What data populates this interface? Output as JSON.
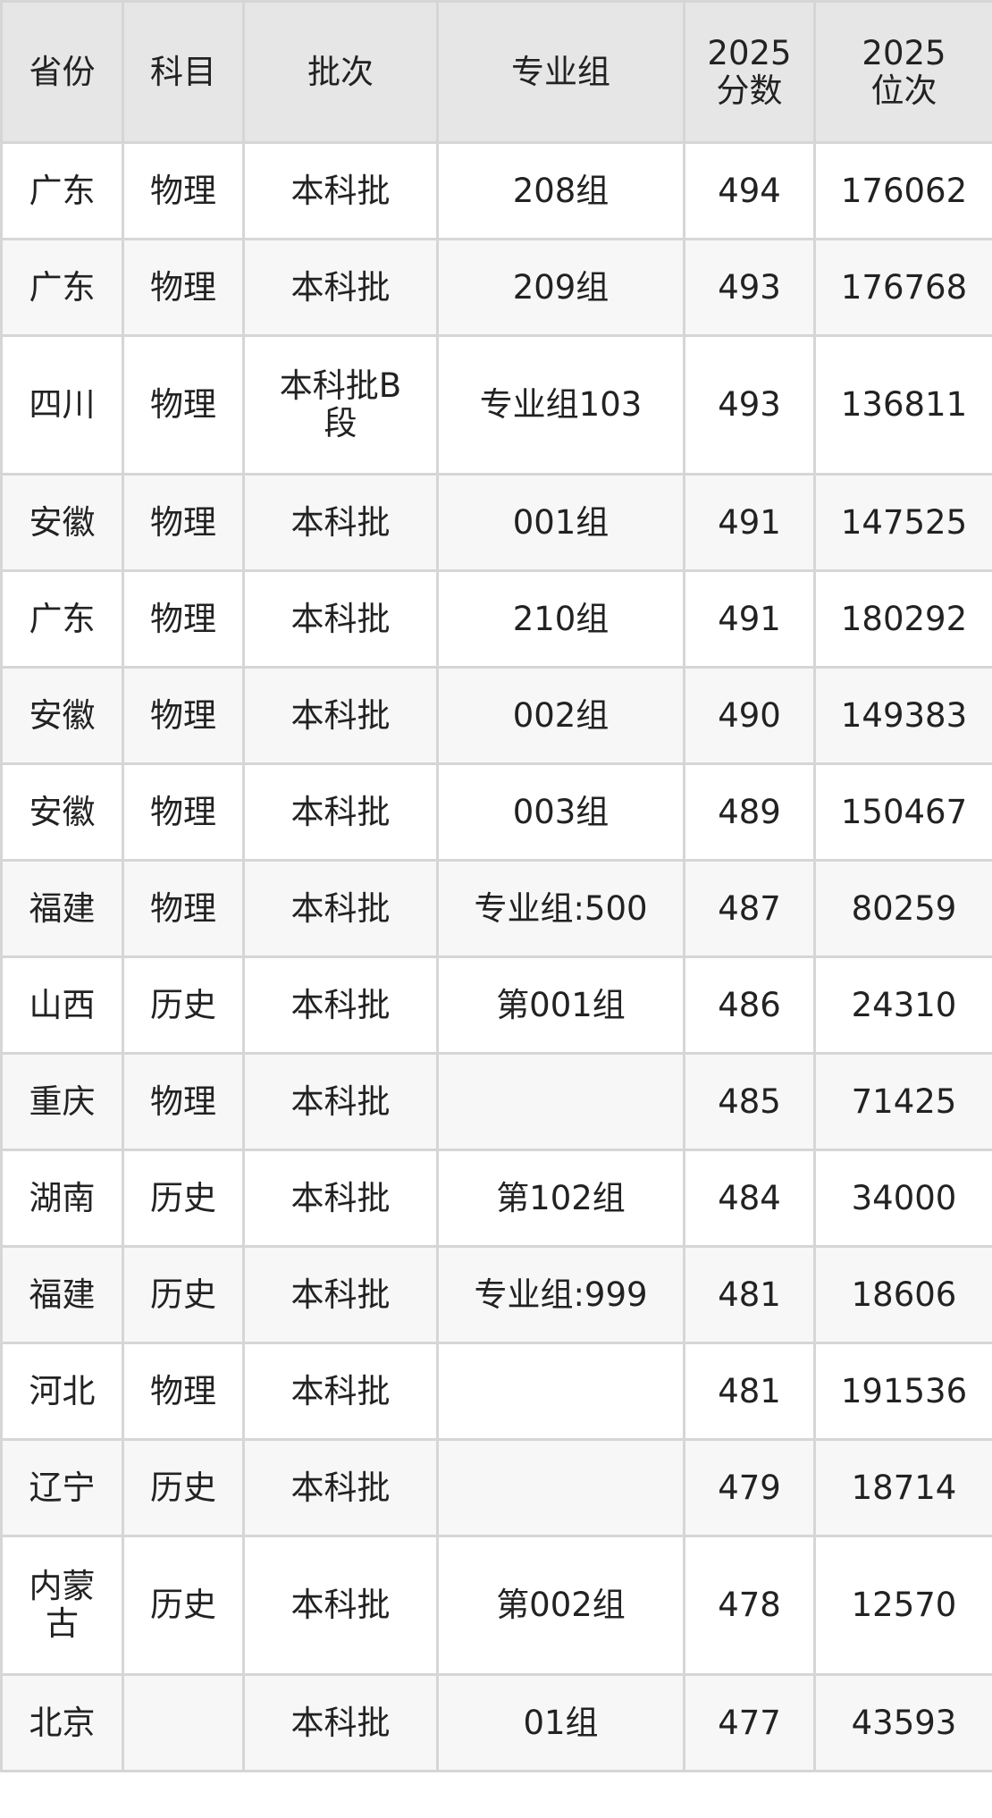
{
  "header": [
    "省份",
    "科目",
    "批次",
    "专业组",
    "2025\n分数",
    "2025\n位次"
  ],
  "rows": [
    [
      "广东",
      "物理",
      "本科批",
      "208组",
      "494",
      "176062"
    ],
    [
      "广东",
      "物理",
      "本科批",
      "209组",
      "493",
      "176768"
    ],
    [
      "四川",
      "物理",
      "本科批B段",
      "专业组103",
      "493",
      "136811"
    ],
    [
      "安徽",
      "物理",
      "本科批",
      "001组",
      "491",
      "147525"
    ],
    [
      "广东",
      "物理",
      "本科批",
      "210组",
      "491",
      "180292"
    ],
    [
      "安徽",
      "物理",
      "本科批",
      "002组",
      "490",
      "149383"
    ],
    [
      "安徽",
      "物理",
      "本科批",
      "003组",
      "489",
      "150467"
    ],
    [
      "福建",
      "物理",
      "本科批",
      "专业组:500",
      "487",
      "80259"
    ],
    [
      "山西",
      "历史",
      "本科批",
      "第001组",
      "486",
      "24310"
    ],
    [
      "重庆",
      "物理",
      "本科批",
      "",
      "485",
      "71425"
    ],
    [
      "湖南",
      "历史",
      "本科批",
      "第102组",
      "484",
      "34000"
    ],
    [
      "福建",
      "历史",
      "本科批",
      "专业组:999",
      "481",
      "18606"
    ],
    [
      "河北",
      "物理",
      "本科批",
      "",
      "481",
      "191536"
    ],
    [
      "辽宁",
      "历史",
      "本科批",
      "",
      "479",
      "18714"
    ],
    [
      "内蒙古",
      "历史",
      "本科批",
      "第002组",
      "478",
      "12570"
    ],
    [
      "北京",
      "",
      "本科批",
      "01组",
      "477",
      "43593"
    ]
  ]
}
